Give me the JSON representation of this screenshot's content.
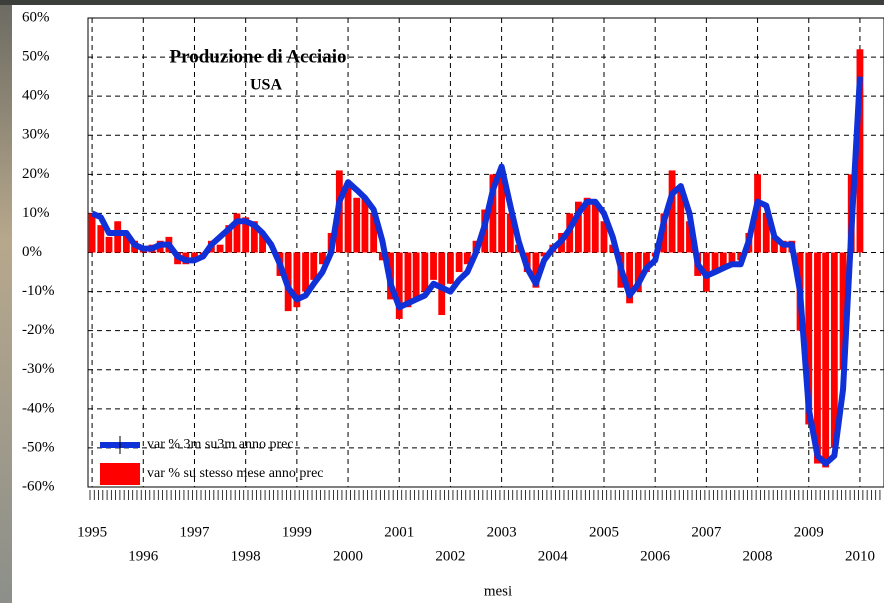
{
  "chart_data": {
    "type": "bar-line",
    "title": "Produzione di Acciaio",
    "subtitle": "USA",
    "x_label": "mesi",
    "x": [
      1995,
      1995.17,
      1995.33,
      1995.5,
      1995.67,
      1995.83,
      1996,
      1996.17,
      1996.33,
      1996.5,
      1996.67,
      1996.83,
      1997,
      1997.17,
      1997.33,
      1997.5,
      1997.67,
      1997.83,
      1998,
      1998.17,
      1998.33,
      1998.5,
      1998.67,
      1998.83,
      1999,
      1999.17,
      1999.33,
      1999.5,
      1999.67,
      1999.83,
      2000,
      2000.17,
      2000.33,
      2000.5,
      2000.67,
      2000.83,
      2001,
      2001.17,
      2001.33,
      2001.5,
      2001.67,
      2001.83,
      2002,
      2002.17,
      2002.33,
      2002.5,
      2002.67,
      2002.83,
      2003,
      2003.17,
      2003.33,
      2003.5,
      2003.67,
      2003.83,
      2004,
      2004.17,
      2004.33,
      2004.5,
      2004.67,
      2004.83,
      2005,
      2005.17,
      2005.33,
      2005.5,
      2005.67,
      2005.83,
      2006,
      2006.17,
      2006.33,
      2006.5,
      2006.67,
      2006.83,
      2007,
      2007.17,
      2007.33,
      2007.5,
      2007.67,
      2007.83,
      2008,
      2008.17,
      2008.33,
      2008.5,
      2008.67,
      2008.83,
      2009,
      2009.17,
      2009.33,
      2009.5,
      2009.67,
      2009.83,
      2010
    ],
    "series": [
      {
        "name": "var % 3m su3m  anno prec",
        "type": "line",
        "color": "#1030d8",
        "values": [
          10,
          9,
          5,
          5,
          5,
          2,
          1,
          1,
          2,
          2,
          -1,
          -2,
          -2,
          -1,
          2,
          4,
          6,
          8,
          8,
          7,
          5,
          2,
          -3,
          -9,
          -12,
          -11,
          -8,
          -5,
          0,
          13,
          18,
          16,
          14,
          11,
          3,
          -8,
          -14,
          -13,
          -12,
          -11,
          -8,
          -9,
          -10,
          -7,
          -5,
          0,
          7,
          16,
          22,
          12,
          3,
          -4,
          -8,
          -2,
          1,
          3,
          6,
          10,
          13,
          13,
          10,
          4,
          -4,
          -11,
          -8,
          -4,
          -2,
          8,
          15,
          17,
          10,
          -3,
          -6,
          -5,
          -4,
          -3,
          -3,
          3,
          13,
          12,
          4,
          2,
          2,
          -10,
          -40,
          -52,
          -54,
          -52,
          -35,
          5,
          45
        ]
      },
      {
        "name": "var %  su stesso mese  anno prec",
        "type": "bar",
        "color": "#ff0000",
        "values": [
          10,
          7,
          4,
          8,
          5,
          3,
          1,
          2,
          3,
          4,
          -3,
          -3,
          -2,
          -1,
          3,
          2,
          7,
          10,
          9,
          8,
          5,
          0,
          -6,
          -15,
          -14,
          -10,
          -7,
          -3,
          5,
          21,
          17,
          14,
          14,
          10,
          -2,
          -12,
          -17,
          -14,
          -12,
          -10,
          -7,
          -16,
          -8,
          -5,
          -3,
          3,
          11,
          20,
          20,
          10,
          2,
          -5,
          -9,
          -1,
          2,
          5,
          10,
          13,
          14,
          13,
          8,
          2,
          -9,
          -13,
          -10,
          -5,
          -1,
          10,
          21,
          16,
          8,
          -6,
          -10,
          -5,
          -4,
          -3,
          -2,
          5,
          20,
          10,
          4,
          3,
          3,
          -20,
          -44,
          -54,
          -55,
          -50,
          -30,
          20,
          52
        ]
      }
    ],
    "xlim": [
      1994.92,
      2010.47
    ],
    "xticks": [
      1995,
      1996,
      1997,
      1998,
      1999,
      2000,
      2001,
      2002,
      2003,
      2004,
      2005,
      2006,
      2007,
      2008,
      2009,
      2010
    ],
    "ylim": [
      -60,
      60
    ],
    "yticks": [
      {
        "value": -60,
        "label": "-60%"
      },
      {
        "value": -50,
        "label": "-50%"
      },
      {
        "value": -40,
        "label": "-40%"
      },
      {
        "value": -30,
        "label": "-30%"
      },
      {
        "value": -20,
        "label": "-20%"
      },
      {
        "value": -10,
        "label": "-10%"
      },
      {
        "value": 0,
        "label": "0%"
      },
      {
        "value": 10,
        "label": "10%"
      },
      {
        "value": 20,
        "label": "20%"
      },
      {
        "value": 30,
        "label": "30%"
      },
      {
        "value": 40,
        "label": "40%"
      },
      {
        "value": 50,
        "label": "50%"
      },
      {
        "value": 60,
        "label": "60%"
      }
    ],
    "grid": true,
    "legend": "lower-left"
  }
}
